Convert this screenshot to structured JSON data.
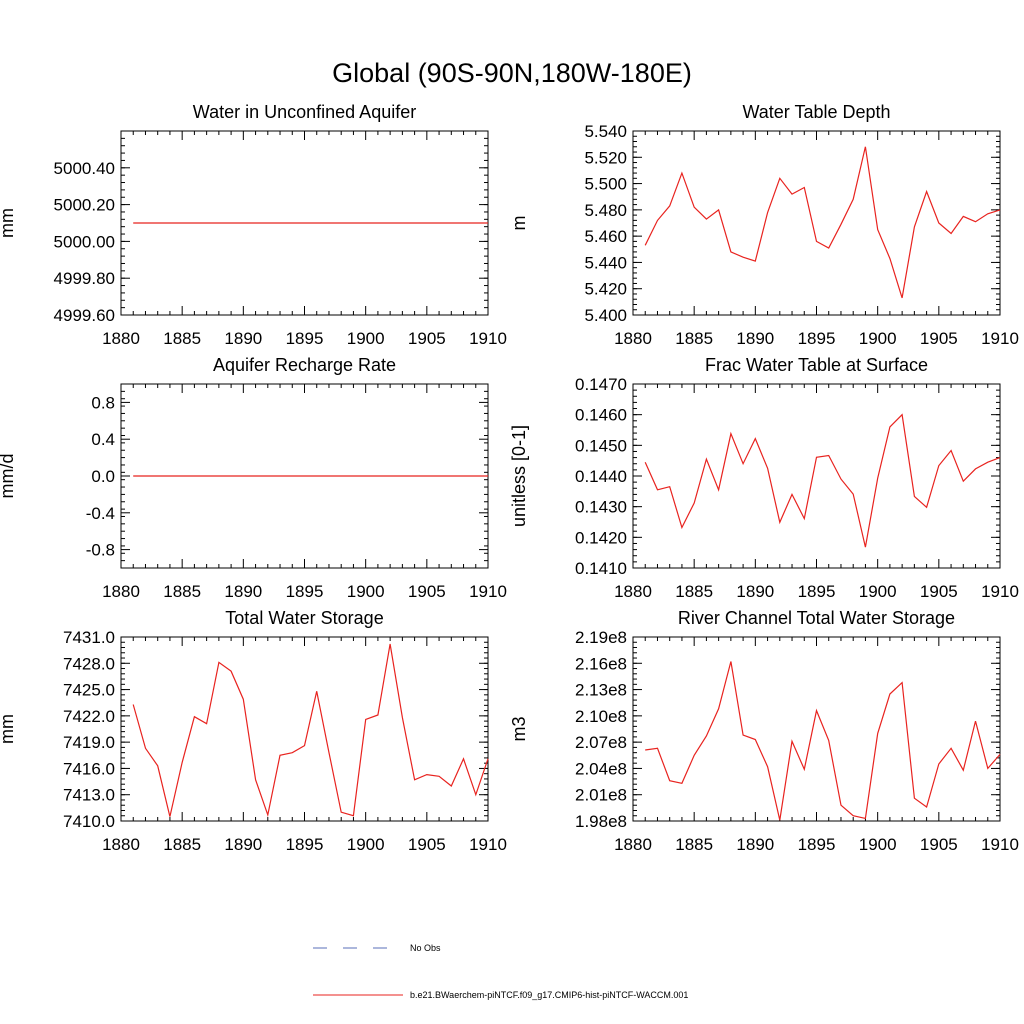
{
  "figure": {
    "title": "Global (90S-90N,180W-180E)",
    "legend": {
      "placement": "bottom-center",
      "entries": [
        {
          "label": "No Obs",
          "color": "#5a6fb8",
          "dash": true
        },
        {
          "label": "b.e21.BWaerchem-piNTCF.f09_g17.CMIP6-hist-piNTCF-WACCM.001",
          "color": "#e8231f",
          "dash": false
        }
      ]
    }
  },
  "chart_data": [
    {
      "type": "line",
      "title": "Water in Unconfined Aquifer",
      "ylabel": "mm",
      "xlim": [
        1880,
        1910
      ],
      "ylim": [
        4999.6,
        5000.6
      ],
      "x_ticks": [
        1880,
        1885,
        1890,
        1895,
        1900,
        1905,
        1910
      ],
      "x_tick_labels": [
        "1880",
        "1885",
        "1890",
        "1895",
        "1900",
        "1905",
        "1910"
      ],
      "y_ticks": [
        4999.6,
        4999.8,
        5000.0,
        5000.2,
        5000.4
      ],
      "y_tick_labels": [
        "4999.60",
        "4999.80",
        "5000.00",
        "5000.20",
        "5000.40"
      ],
      "series": [
        {
          "color": "#e8231f",
          "x": [
            1881,
            1910
          ],
          "values": [
            5000.1,
            5000.1
          ]
        }
      ]
    },
    {
      "type": "line",
      "title": "Water Table Depth",
      "ylabel": "m",
      "xlim": [
        1880,
        1910
      ],
      "ylim": [
        5.4,
        5.54
      ],
      "x_ticks": [
        1880,
        1885,
        1890,
        1895,
        1900,
        1905,
        1910
      ],
      "x_tick_labels": [
        "1880",
        "1885",
        "1890",
        "1895",
        "1900",
        "1905",
        "1910"
      ],
      "y_ticks": [
        5.4,
        5.42,
        5.44,
        5.46,
        5.48,
        5.5,
        5.52,
        5.54
      ],
      "y_tick_labels": [
        "5.400",
        "5.420",
        "5.440",
        "5.460",
        "5.480",
        "5.500",
        "5.520",
        "5.540"
      ],
      "series": [
        {
          "color": "#e8231f",
          "x": [
            1881,
            1882,
            1883,
            1884,
            1885,
            1886,
            1887,
            1888,
            1889,
            1890,
            1891,
            1892,
            1893,
            1894,
            1895,
            1896,
            1897,
            1898,
            1899,
            1900,
            1901,
            1902,
            1903,
            1904,
            1905,
            1906,
            1907,
            1908,
            1909,
            1910
          ],
          "values": [
            5.453,
            5.472,
            5.483,
            5.508,
            5.482,
            5.473,
            5.48,
            5.448,
            5.444,
            5.441,
            5.478,
            5.504,
            5.492,
            5.497,
            5.456,
            5.451,
            5.469,
            5.488,
            5.528,
            5.465,
            5.443,
            5.413,
            5.467,
            5.494,
            5.47,
            5.462,
            5.475,
            5.471,
            5.477,
            5.48
          ]
        }
      ]
    },
    {
      "type": "line",
      "title": "Aquifer Recharge Rate",
      "ylabel": "mm/d",
      "xlim": [
        1880,
        1910
      ],
      "ylim": [
        -1.0,
        1.0
      ],
      "x_ticks": [
        1880,
        1885,
        1890,
        1895,
        1900,
        1905,
        1910
      ],
      "x_tick_labels": [
        "1880",
        "1885",
        "1890",
        "1895",
        "1900",
        "1905",
        "1910"
      ],
      "y_ticks": [
        -0.8,
        -0.4,
        0.0,
        0.4,
        0.8
      ],
      "y_tick_labels": [
        "-0.8",
        "-0.4",
        "0.0",
        "0.4",
        "0.8"
      ],
      "series": [
        {
          "color": "#e8231f",
          "x": [
            1881,
            1910
          ],
          "values": [
            0.0,
            0.0
          ]
        }
      ]
    },
    {
      "type": "line",
      "title": "Frac Water Table at Surface",
      "ylabel": "unitless [0-1]",
      "xlim": [
        1880,
        1910
      ],
      "ylim": [
        0.141,
        0.147
      ],
      "x_ticks": [
        1880,
        1885,
        1890,
        1895,
        1900,
        1905,
        1910
      ],
      "x_tick_labels": [
        "1880",
        "1885",
        "1890",
        "1895",
        "1900",
        "1905",
        "1910"
      ],
      "y_ticks": [
        0.141,
        0.142,
        0.143,
        0.144,
        0.145,
        0.146,
        0.147
      ],
      "y_tick_labels": [
        "0.1410",
        "0.1420",
        "0.1430",
        "0.1440",
        "0.1450",
        "0.1460",
        "0.1470"
      ],
      "series": [
        {
          "color": "#e8231f",
          "x": [
            1881,
            1882,
            1883,
            1884,
            1885,
            1886,
            1887,
            1888,
            1889,
            1890,
            1891,
            1892,
            1893,
            1894,
            1895,
            1896,
            1897,
            1898,
            1899,
            1900,
            1901,
            1902,
            1903,
            1904,
            1905,
            1906,
            1907,
            1908,
            1909,
            1910
          ],
          "values": [
            0.14445,
            0.14355,
            0.14365,
            0.14232,
            0.14312,
            0.14455,
            0.14355,
            0.14538,
            0.1444,
            0.14522,
            0.14425,
            0.14249,
            0.1434,
            0.14261,
            0.14461,
            0.14467,
            0.1439,
            0.14341,
            0.14168,
            0.14393,
            0.1456,
            0.146,
            0.14333,
            0.14298,
            0.14434,
            0.14483,
            0.14383,
            0.14423,
            0.14445,
            0.1446
          ]
        }
      ]
    },
    {
      "type": "line",
      "title": "Total Water Storage",
      "ylabel": "mm",
      "xlim": [
        1880,
        1910
      ],
      "ylim": [
        7410.0,
        7431.0
      ],
      "x_ticks": [
        1880,
        1885,
        1890,
        1895,
        1900,
        1905,
        1910
      ],
      "x_tick_labels": [
        "1880",
        "1885",
        "1890",
        "1895",
        "1900",
        "1905",
        "1910"
      ],
      "y_ticks": [
        7410.0,
        7413.0,
        7416.0,
        7419.0,
        7422.0,
        7425.0,
        7428.0,
        7431.0
      ],
      "y_tick_labels": [
        "7410.0",
        "7413.0",
        "7416.0",
        "7419.0",
        "7422.0",
        "7425.0",
        "7428.0",
        "7431.0"
      ],
      "series": [
        {
          "color": "#e8231f",
          "x": [
            1881,
            1882,
            1883,
            1884,
            1885,
            1886,
            1887,
            1888,
            1889,
            1890,
            1891,
            1892,
            1893,
            1894,
            1895,
            1896,
            1897,
            1898,
            1899,
            1900,
            1901,
            1902,
            1903,
            1904,
            1905,
            1906,
            1907,
            1908,
            1909,
            1910
          ],
          "values": [
            7423.3,
            7418.3,
            7416.3,
            7410.5,
            7416.7,
            7421.9,
            7421.1,
            7428.1,
            7427.1,
            7423.9,
            7414.7,
            7410.7,
            7417.5,
            7417.8,
            7418.6,
            7424.8,
            7417.8,
            7411.0,
            7410.6,
            7421.6,
            7422.1,
            7430.2,
            7421.8,
            7414.7,
            7415.3,
            7415.1,
            7414.0,
            7417.1,
            7413.0,
            7417.1
          ]
        }
      ]
    },
    {
      "type": "line",
      "title": "River Channel Total Water Storage",
      "ylabel": "m3",
      "xlim": [
        1880,
        1910
      ],
      "ylim": [
        198000000,
        219000000
      ],
      "x_ticks": [
        1880,
        1885,
        1890,
        1895,
        1900,
        1905,
        1910
      ],
      "x_tick_labels": [
        "1880",
        "1885",
        "1890",
        "1895",
        "1900",
        "1905",
        "1910"
      ],
      "y_ticks": [
        198000000,
        201000000,
        204000000,
        207000000,
        210000000,
        213000000,
        216000000,
        219000000
      ],
      "y_tick_labels": [
        "1.98e8",
        "2.01e8",
        "2.04e8",
        "2.07e8",
        "2.10e8",
        "2.13e8",
        "2.16e8",
        "2.19e8"
      ],
      "series": [
        {
          "color": "#e8231f",
          "x": [
            1881,
            1882,
            1883,
            1884,
            1885,
            1886,
            1887,
            1888,
            1889,
            1890,
            1891,
            1892,
            1893,
            1894,
            1895,
            1896,
            1897,
            1898,
            1899,
            1900,
            1901,
            1902,
            1903,
            1904,
            1905,
            1906,
            1907,
            1908,
            1909,
            1910
          ],
          "values": [
            206100000,
            206300000,
            202600000,
            202300000,
            205500000,
            207700000,
            210800000,
            216200000,
            207800000,
            207300000,
            204200000,
            198100000,
            207100000,
            203900000,
            210600000,
            207200000,
            199800000,
            198600000,
            198300000,
            208000000,
            212500000,
            213800000,
            200600000,
            199600000,
            204500000,
            206300000,
            203800000,
            209400000,
            204000000,
            205600000
          ]
        }
      ]
    }
  ]
}
